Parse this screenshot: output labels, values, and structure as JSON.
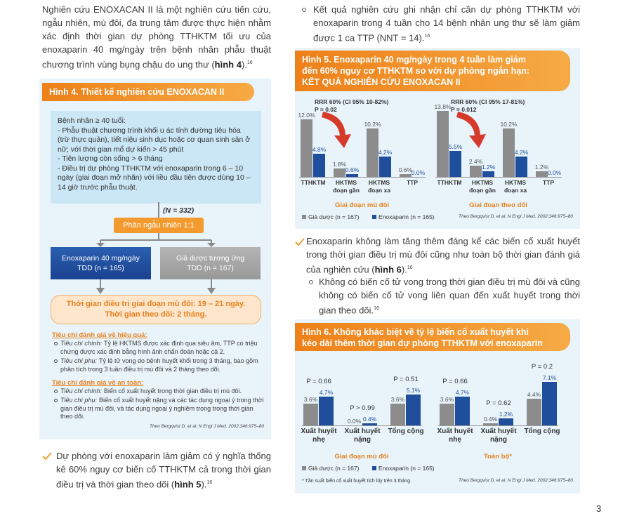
{
  "left": {
    "intro": {
      "text": "Nghiên cứu ENOXACAN II là một nghiên cứu tiến cứu, ngẫu nhiên, mù đôi, đa trung tâm được thực hiện nhằm xác định thời gian dự phòng TTHKTM tối ưu của enoxaparin 40 mg/ngày trên bệnh nhân phẫu thuật chương trình vùng bụng chậu do ung thư (",
      "ref": "hình 4",
      "tail": ").",
      "sup": "16"
    },
    "bullet": {
      "text": "Dự phòng với enoxaparin làm giảm có ý nghĩa thống kê 60% nguy cơ biến cố TTHKTM cả trong thời gian điều trị và thời gian theo dõi (",
      "ref": "hình 5",
      "tail": ").",
      "sup": "16"
    }
  },
  "right": {
    "sub_bullet_1": {
      "text": "Kết quả nghiên cứu ghi nhận chỉ cần dự phòng TTHKTM với enoxaparin trong 4 tuần cho 14 bệnh nhân ung thư sẽ làm giảm được 1 ca TTP (NNT = 14).",
      "sup": "16"
    },
    "bullet": {
      "text": "Enoxaparin không làm tăng thêm đáng kể các biến cố xuất huyết trong thời gian điều trị mù đôi cũng như toàn bộ thời gian đánh giá của nghiên cứu (",
      "ref": "hình 6",
      "tail": ").",
      "sup": "16"
    },
    "sub_bullet_2": {
      "text": "Không có biến cố tử vong trong thời gian điều trị mù đôi và cũng không có biến cố tử vong liên quan đến xuất huyết trong thời gian theo dõi.",
      "sup": "16"
    }
  },
  "figure4": {
    "title": "Hình 4. Thiết kế nghiên cứu ENOXACAN II",
    "criteria_title": "Bệnh nhân ≥ 40 tuổi:",
    "criteria": [
      "- Phẫu thuật chương trình khối u ác tính đường tiêu hóa (trừ thực quản), tiết niệu sinh dục hoặc cơ quan sinh sản ở nữ; với thời gian mổ dự kiến > 45 phút",
      "- Tiên lượng còn sống > 6 tháng",
      "- Điều trị dự phòng TTHKTM với enoxaparin trong 6 – 10 ngày (giai đoạn mở nhãn) với liều đầu tiên được dùng 10 – 14 giờ trước phẫu thuật."
    ],
    "n": "(N = 332)",
    "randomization": "Phân ngẫu nhiên 1:1",
    "arms": [
      "Enoxaparin 40 mg/ngày\nTDD (n = 165)",
      "Giả dược tương ứng\nTDD (n = 167)"
    ],
    "duration": [
      "Thời gian điều trị giai đoạn mù đôi: 19 – 21 ngày.",
      "Thời gian theo dõi: 2 tháng."
    ],
    "efficacy": {
      "title": "Tiêu chí đánh giá về hiệu quả:",
      "items": [
        {
          "label": "Tiêu chí chính:",
          "text": "Tỷ lệ HKTMS được xác định qua siêu âm, TTP có triệu chứng được xác định bằng hình ảnh chẩn đoán hoặc cả 2."
        },
        {
          "label": "Tiêu chí phụ:",
          "text": "Tỷ lệ tử vong do bệnh huyết khối trong 3 tháng, bao gồm phân tích trong 3 tuần điều trị mù đôi và 2 tháng theo dõi."
        }
      ]
    },
    "safety": {
      "title": "Tiêu chí đánh giá về an toàn:",
      "items": [
        {
          "label": "Tiêu chí chính:",
          "text": "Biến cố xuất huyết trong thời gian điều trị mù đôi."
        },
        {
          "label": "Tiêu chí phụ:",
          "text": "Biến cố xuất huyết nặng và các tác dụng ngoại ý trong thời gian điều trị mù đôi, và tác dụng ngoại ý nghiêm trọng trong thời gian theo dõi."
        }
      ]
    },
    "source": "Theo Bergqvist D, et al. N Engl J Med. 2002;346:975–80"
  },
  "chart_data": [
    {
      "type": "bar",
      "title": "Hình 5. Enoxaparin 40 mg/ngày trong 4 tuần làm giảm\nđến 60% nguy cơ TTHKTM so với dự phòng ngắn hạn:\nKẾT QUẢ NGHIÊN CỨU ENOXACAN II",
      "series": [
        {
          "name": "Giả dược (n = 167)",
          "color": "#8c8c8c"
        },
        {
          "name": "Enoxaparin (n = 165)",
          "color": "#1f4e9c"
        }
      ],
      "panels": [
        {
          "label": "Giai đoạn mù đôi",
          "annotations": [
            "RRR 60% (CI 95% 10-82%)",
            "P = 0.02"
          ],
          "categories": [
            "TTHKTM",
            "HKTMS\nđoạn gần",
            "HKTMS\nđoạn xa",
            "TTP"
          ],
          "values": [
            [
              12.0,
              1.8,
              10.2,
              0.6
            ],
            [
              4.8,
              0.6,
              4.2,
              0.0
            ]
          ],
          "value_labels": [
            [
              "12.0%",
              "1.8%",
              "10.2%",
              "0.6%"
            ],
            [
              "4.8%",
              "0.6%",
              "4.2%",
              "0.0%"
            ]
          ]
        },
        {
          "label": "Giai đoạn theo dõi",
          "annotations": [
            "RRR 60% (CI 95% 17-81%)",
            "P = 0.012"
          ],
          "categories": [
            "TTHKTM",
            "HKTMS\nđoạn gần",
            "HKTMS\nđoạn xa",
            "TTP"
          ],
          "values": [
            [
              13.8,
              2.4,
              10.2,
              1.2
            ],
            [
              5.5,
              1.2,
              4.2,
              0.0
            ]
          ],
          "value_labels": [
            [
              "13.8%",
              "2.4%",
              "10.2%",
              "1.2%"
            ],
            [
              "5.5%",
              "1.2%",
              "4.2%",
              "0.0%"
            ]
          ]
        }
      ],
      "source": "Theo Bergqvist D, et al. N Engl J Med. 2002;346:975–80"
    },
    {
      "type": "bar",
      "title": "Hình 6. Không khác biệt về tỷ lệ biến cố xuất huyết khi\nkéo dài thêm thời gian dự phòng TTHKTM với enoxaparin",
      "series": [
        {
          "name": "Giả dược (n = 167)",
          "color": "#8c8c8c"
        },
        {
          "name": "Enoxaparin (n = 165)",
          "color": "#1f4e9c"
        }
      ],
      "panels": [
        {
          "label": "Giai đoạn mù đôi",
          "categories": [
            "Xuất huyết\nnhẹ",
            "Xuất huyết\nnặng",
            "Tổng cộng"
          ],
          "p_values": [
            "P = 0.66",
            "P > 0.99",
            "P = 0.51"
          ],
          "values": [
            [
              3.6,
              0.0,
              3.6
            ],
            [
              4.7,
              0.4,
              5.1
            ]
          ],
          "value_labels": [
            [
              "3.6%",
              "0.0%",
              "3.6%"
            ],
            [
              "4.7%",
              "0.4%",
              "5.1%"
            ]
          ]
        },
        {
          "label": "Toàn bộ*",
          "categories": [
            "Xuất huyết\nnhẹ",
            "Xuất huyết\nnặng",
            "Tổng cộng"
          ],
          "p_values": [
            "P = 0.66",
            "P = 0.62",
            "P = 0.2"
          ],
          "values": [
            [
              3.6,
              0.4,
              4.4
            ],
            [
              4.7,
              1.2,
              7.1
            ]
          ],
          "value_labels": [
            [
              "3.6%",
              "0.4%",
              "4.4%"
            ],
            [
              "4.7%",
              "1.2%",
              "7.1%"
            ]
          ]
        }
      ],
      "footnote": "* Tần suất biến cố xuất huyết tích lũy trên 3 tháng.",
      "source": "Theo Bergqvist D, et al. N Engl J Med. 2002;346:975–80"
    }
  ],
  "page_number": "3"
}
